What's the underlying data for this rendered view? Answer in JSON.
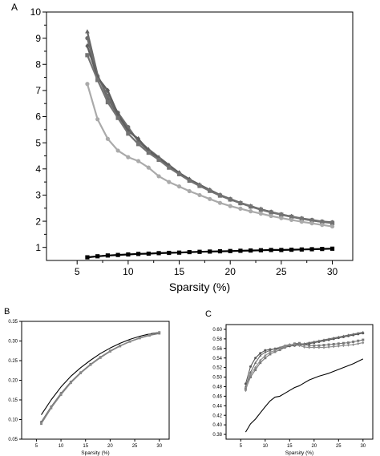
{
  "chart_data": [
    {
      "panel": "A",
      "type": "line",
      "xlabel": "Sparsity (%)",
      "ylabel": "",
      "xlim": [
        2,
        32
      ],
      "ylim": [
        0.5,
        10
      ],
      "xticks": [
        5,
        10,
        15,
        20,
        25,
        30
      ],
      "yticks": [
        1,
        2,
        3,
        4,
        5,
        6,
        7,
        8,
        9,
        10
      ],
      "series": [
        {
          "color": "#666666",
          "marker": "triangle",
          "x": [
            6,
            7,
            8,
            9,
            10,
            11,
            12,
            13,
            14,
            15,
            16,
            17,
            18,
            19,
            20,
            21,
            22,
            23,
            24,
            25,
            26,
            27,
            28,
            29,
            30
          ],
          "y": [
            9.25,
            7.6,
            6.7,
            6.05,
            5.5,
            5.1,
            4.75,
            4.45,
            4.15,
            3.85,
            3.6,
            3.4,
            3.2,
            3.0,
            2.85,
            2.7,
            2.58,
            2.45,
            2.35,
            2.25,
            2.17,
            2.1,
            2.03,
            1.98,
            1.95
          ]
        },
        {
          "color": "#6e6e6e",
          "marker": "circle",
          "x": [
            6,
            7,
            8,
            9,
            10,
            11,
            12,
            13,
            14,
            15,
            16,
            17,
            18,
            19,
            20,
            21,
            22,
            23,
            24,
            25,
            26,
            27,
            28,
            29,
            30
          ],
          "y": [
            9.0,
            7.55,
            6.8,
            6.15,
            5.6,
            5.05,
            4.7,
            4.4,
            4.1,
            3.82,
            3.57,
            3.37,
            3.18,
            3.0,
            2.85,
            2.7,
            2.57,
            2.45,
            2.35,
            2.26,
            2.18,
            2.11,
            2.05,
            1.99,
            1.96
          ]
        },
        {
          "color": "#5e5e5e",
          "marker": "diamond",
          "x": [
            6,
            7,
            8,
            9,
            10,
            11,
            12,
            13,
            14,
            15,
            16,
            17,
            18,
            19,
            20,
            21,
            22,
            23,
            24,
            25,
            26,
            27,
            28,
            29,
            30
          ],
          "y": [
            8.7,
            7.5,
            7.0,
            6.1,
            5.45,
            5.15,
            4.7,
            4.4,
            4.12,
            3.85,
            3.6,
            3.38,
            3.19,
            3.0,
            2.84,
            2.7,
            2.57,
            2.46,
            2.35,
            2.26,
            2.18,
            2.1,
            2.04,
            1.98,
            1.94
          ]
        },
        {
          "color": "#737373",
          "marker": "square",
          "x": [
            6,
            7,
            8,
            9,
            10,
            11,
            12,
            13,
            14,
            15,
            16,
            17,
            18,
            19,
            20,
            21,
            22,
            23,
            24,
            25,
            26,
            27,
            28,
            29,
            30
          ],
          "y": [
            8.35,
            7.4,
            6.55,
            5.95,
            5.35,
            4.95,
            4.62,
            4.35,
            4.05,
            3.8,
            3.55,
            3.35,
            3.16,
            2.98,
            2.83,
            2.69,
            2.56,
            2.44,
            2.34,
            2.25,
            2.17,
            2.09,
            2.03,
            1.97,
            1.93
          ]
        },
        {
          "color": "#aaaaaa",
          "marker": "circle",
          "x": [
            6,
            7,
            8,
            9,
            10,
            11,
            12,
            13,
            14,
            15,
            16,
            17,
            18,
            19,
            20,
            21,
            22,
            23,
            24,
            25,
            26,
            27,
            28,
            29,
            30
          ],
          "y": [
            7.25,
            5.9,
            5.15,
            4.7,
            4.45,
            4.3,
            4.05,
            3.72,
            3.5,
            3.33,
            3.15,
            3.0,
            2.85,
            2.7,
            2.58,
            2.48,
            2.38,
            2.29,
            2.2,
            2.12,
            2.05,
            1.98,
            1.92,
            1.86,
            1.8
          ]
        },
        {
          "color": "#000000",
          "marker": "square",
          "x": [
            6,
            7,
            8,
            9,
            10,
            11,
            12,
            13,
            14,
            15,
            16,
            17,
            18,
            19,
            20,
            21,
            22,
            23,
            24,
            25,
            26,
            27,
            28,
            29,
            30
          ],
          "y": [
            0.62,
            0.66,
            0.69,
            0.71,
            0.73,
            0.75,
            0.76,
            0.78,
            0.79,
            0.8,
            0.82,
            0.83,
            0.84,
            0.85,
            0.86,
            0.87,
            0.88,
            0.89,
            0.9,
            0.9,
            0.91,
            0.92,
            0.93,
            0.94,
            0.95
          ]
        }
      ]
    },
    {
      "panel": "B",
      "type": "line",
      "xlabel": "Sparsity (%)",
      "ylabel": "",
      "xlim": [
        2,
        32
      ],
      "ylim": [
        0.05,
        0.35
      ],
      "xticks": [
        5,
        10,
        15,
        20,
        25,
        30
      ],
      "yticks": [
        "0.05",
        "0.10",
        "0.15",
        "0.20",
        "0.25",
        "0.30",
        "0.35"
      ],
      "series": [
        {
          "color": "#000000",
          "marker": "none",
          "x": [
            6,
            8,
            10,
            12,
            14,
            16,
            18,
            20,
            22,
            24,
            26,
            28,
            30
          ],
          "y": [
            0.112,
            0.15,
            0.183,
            0.21,
            0.232,
            0.251,
            0.268,
            0.282,
            0.294,
            0.304,
            0.312,
            0.318,
            0.322
          ]
        },
        {
          "color": "#666666",
          "marker": "circle",
          "x": [
            6,
            8,
            10,
            12,
            14,
            16,
            18,
            20,
            22,
            24,
            26,
            28,
            30
          ],
          "y": [
            0.094,
            0.133,
            0.167,
            0.196,
            0.22,
            0.241,
            0.259,
            0.275,
            0.288,
            0.299,
            0.308,
            0.315,
            0.32
          ]
        },
        {
          "color": "#777777",
          "marker": "triangle",
          "x": [
            6,
            8,
            10,
            12,
            14,
            16,
            18,
            20,
            22,
            24,
            26,
            28,
            30
          ],
          "y": [
            0.089,
            0.129,
            0.163,
            0.193,
            0.218,
            0.239,
            0.257,
            0.273,
            0.287,
            0.298,
            0.307,
            0.314,
            0.319
          ]
        },
        {
          "color": "#8a8a8a",
          "marker": "square",
          "x": [
            6,
            8,
            10,
            12,
            14,
            16,
            18,
            20,
            22,
            24,
            26,
            28,
            30
          ],
          "y": [
            0.091,
            0.131,
            0.165,
            0.194,
            0.219,
            0.24,
            0.258,
            0.274,
            0.287,
            0.299,
            0.308,
            0.316,
            0.322
          ]
        }
      ]
    },
    {
      "panel": "C",
      "type": "line",
      "xlabel": "Sparsity (%)",
      "ylabel": "",
      "xlim": [
        2,
        32
      ],
      "ylim": [
        0.37,
        0.61
      ],
      "xticks": [
        5,
        10,
        15,
        20,
        25,
        30
      ],
      "yticks": [
        "0.38",
        "0.40",
        "0.42",
        "0.44",
        "0.46",
        "0.48",
        "0.50",
        "0.52",
        "0.54",
        "0.56",
        "0.58",
        "0.60"
      ],
      "series": [
        {
          "color": "#000000",
          "marker": "none",
          "x": [
            6,
            7,
            8,
            9,
            10,
            11,
            12,
            13,
            14,
            15,
            16,
            17,
            18,
            19,
            20,
            21,
            22,
            23,
            24,
            25,
            26,
            27,
            28,
            29,
            30
          ],
          "y": [
            0.385,
            0.402,
            0.412,
            0.425,
            0.438,
            0.45,
            0.458,
            0.46,
            0.466,
            0.472,
            0.478,
            0.482,
            0.488,
            0.494,
            0.498,
            0.502,
            0.505,
            0.508,
            0.512,
            0.516,
            0.52,
            0.524,
            0.528,
            0.533,
            0.538
          ]
        },
        {
          "color": "#555555",
          "marker": "circle",
          "x": [
            6,
            7,
            8,
            9,
            10,
            11,
            12,
            13,
            14,
            15,
            16,
            17,
            18,
            19,
            20,
            21,
            22,
            23,
            24,
            25,
            26,
            27,
            28,
            29,
            30
          ],
          "y": [
            0.486,
            0.522,
            0.54,
            0.55,
            0.556,
            0.558,
            0.559,
            0.56,
            0.562,
            0.565,
            0.566,
            0.567,
            0.568,
            0.57,
            0.572,
            0.574,
            0.576,
            0.578,
            0.58,
            0.582,
            0.584,
            0.586,
            0.588,
            0.59,
            0.592
          ]
        },
        {
          "color": "#6a6a6a",
          "marker": "triangle",
          "x": [
            6,
            7,
            8,
            9,
            10,
            11,
            12,
            13,
            14,
            15,
            16,
            17,
            18,
            19,
            20,
            21,
            22,
            23,
            24,
            25,
            26,
            27,
            28,
            29,
            30
          ],
          "y": [
            0.48,
            0.51,
            0.53,
            0.545,
            0.552,
            0.556,
            0.56,
            0.562,
            0.566,
            0.568,
            0.569,
            0.569,
            0.57,
            0.572,
            0.574,
            0.576,
            0.578,
            0.58,
            0.582,
            0.584,
            0.586,
            0.588,
            0.59,
            0.592,
            0.594
          ]
        },
        {
          "color": "#7a7a7a",
          "marker": "square",
          "x": [
            6,
            7,
            8,
            9,
            10,
            11,
            12,
            13,
            14,
            15,
            16,
            17,
            18,
            19,
            20,
            21,
            22,
            23,
            24,
            25,
            26,
            27,
            28,
            29,
            30
          ],
          "y": [
            0.475,
            0.5,
            0.515,
            0.53,
            0.54,
            0.548,
            0.553,
            0.557,
            0.562,
            0.567,
            0.57,
            0.571,
            0.568,
            0.566,
            0.566,
            0.566,
            0.567,
            0.568,
            0.569,
            0.57,
            0.571,
            0.572,
            0.574,
            0.576,
            0.578
          ]
        },
        {
          "color": "#8c8c8c",
          "marker": "diamond",
          "x": [
            6,
            7,
            8,
            9,
            10,
            11,
            12,
            13,
            14,
            15,
            16,
            17,
            18,
            19,
            20,
            21,
            22,
            23,
            24,
            25,
            26,
            27,
            28,
            29,
            30
          ],
          "y": [
            0.472,
            0.505,
            0.52,
            0.535,
            0.545,
            0.552,
            0.556,
            0.56,
            0.564,
            0.568,
            0.568,
            0.566,
            0.563,
            0.562,
            0.562,
            0.562,
            0.562,
            0.563,
            0.564,
            0.565,
            0.566,
            0.567,
            0.568,
            0.57,
            0.572
          ]
        }
      ]
    }
  ]
}
